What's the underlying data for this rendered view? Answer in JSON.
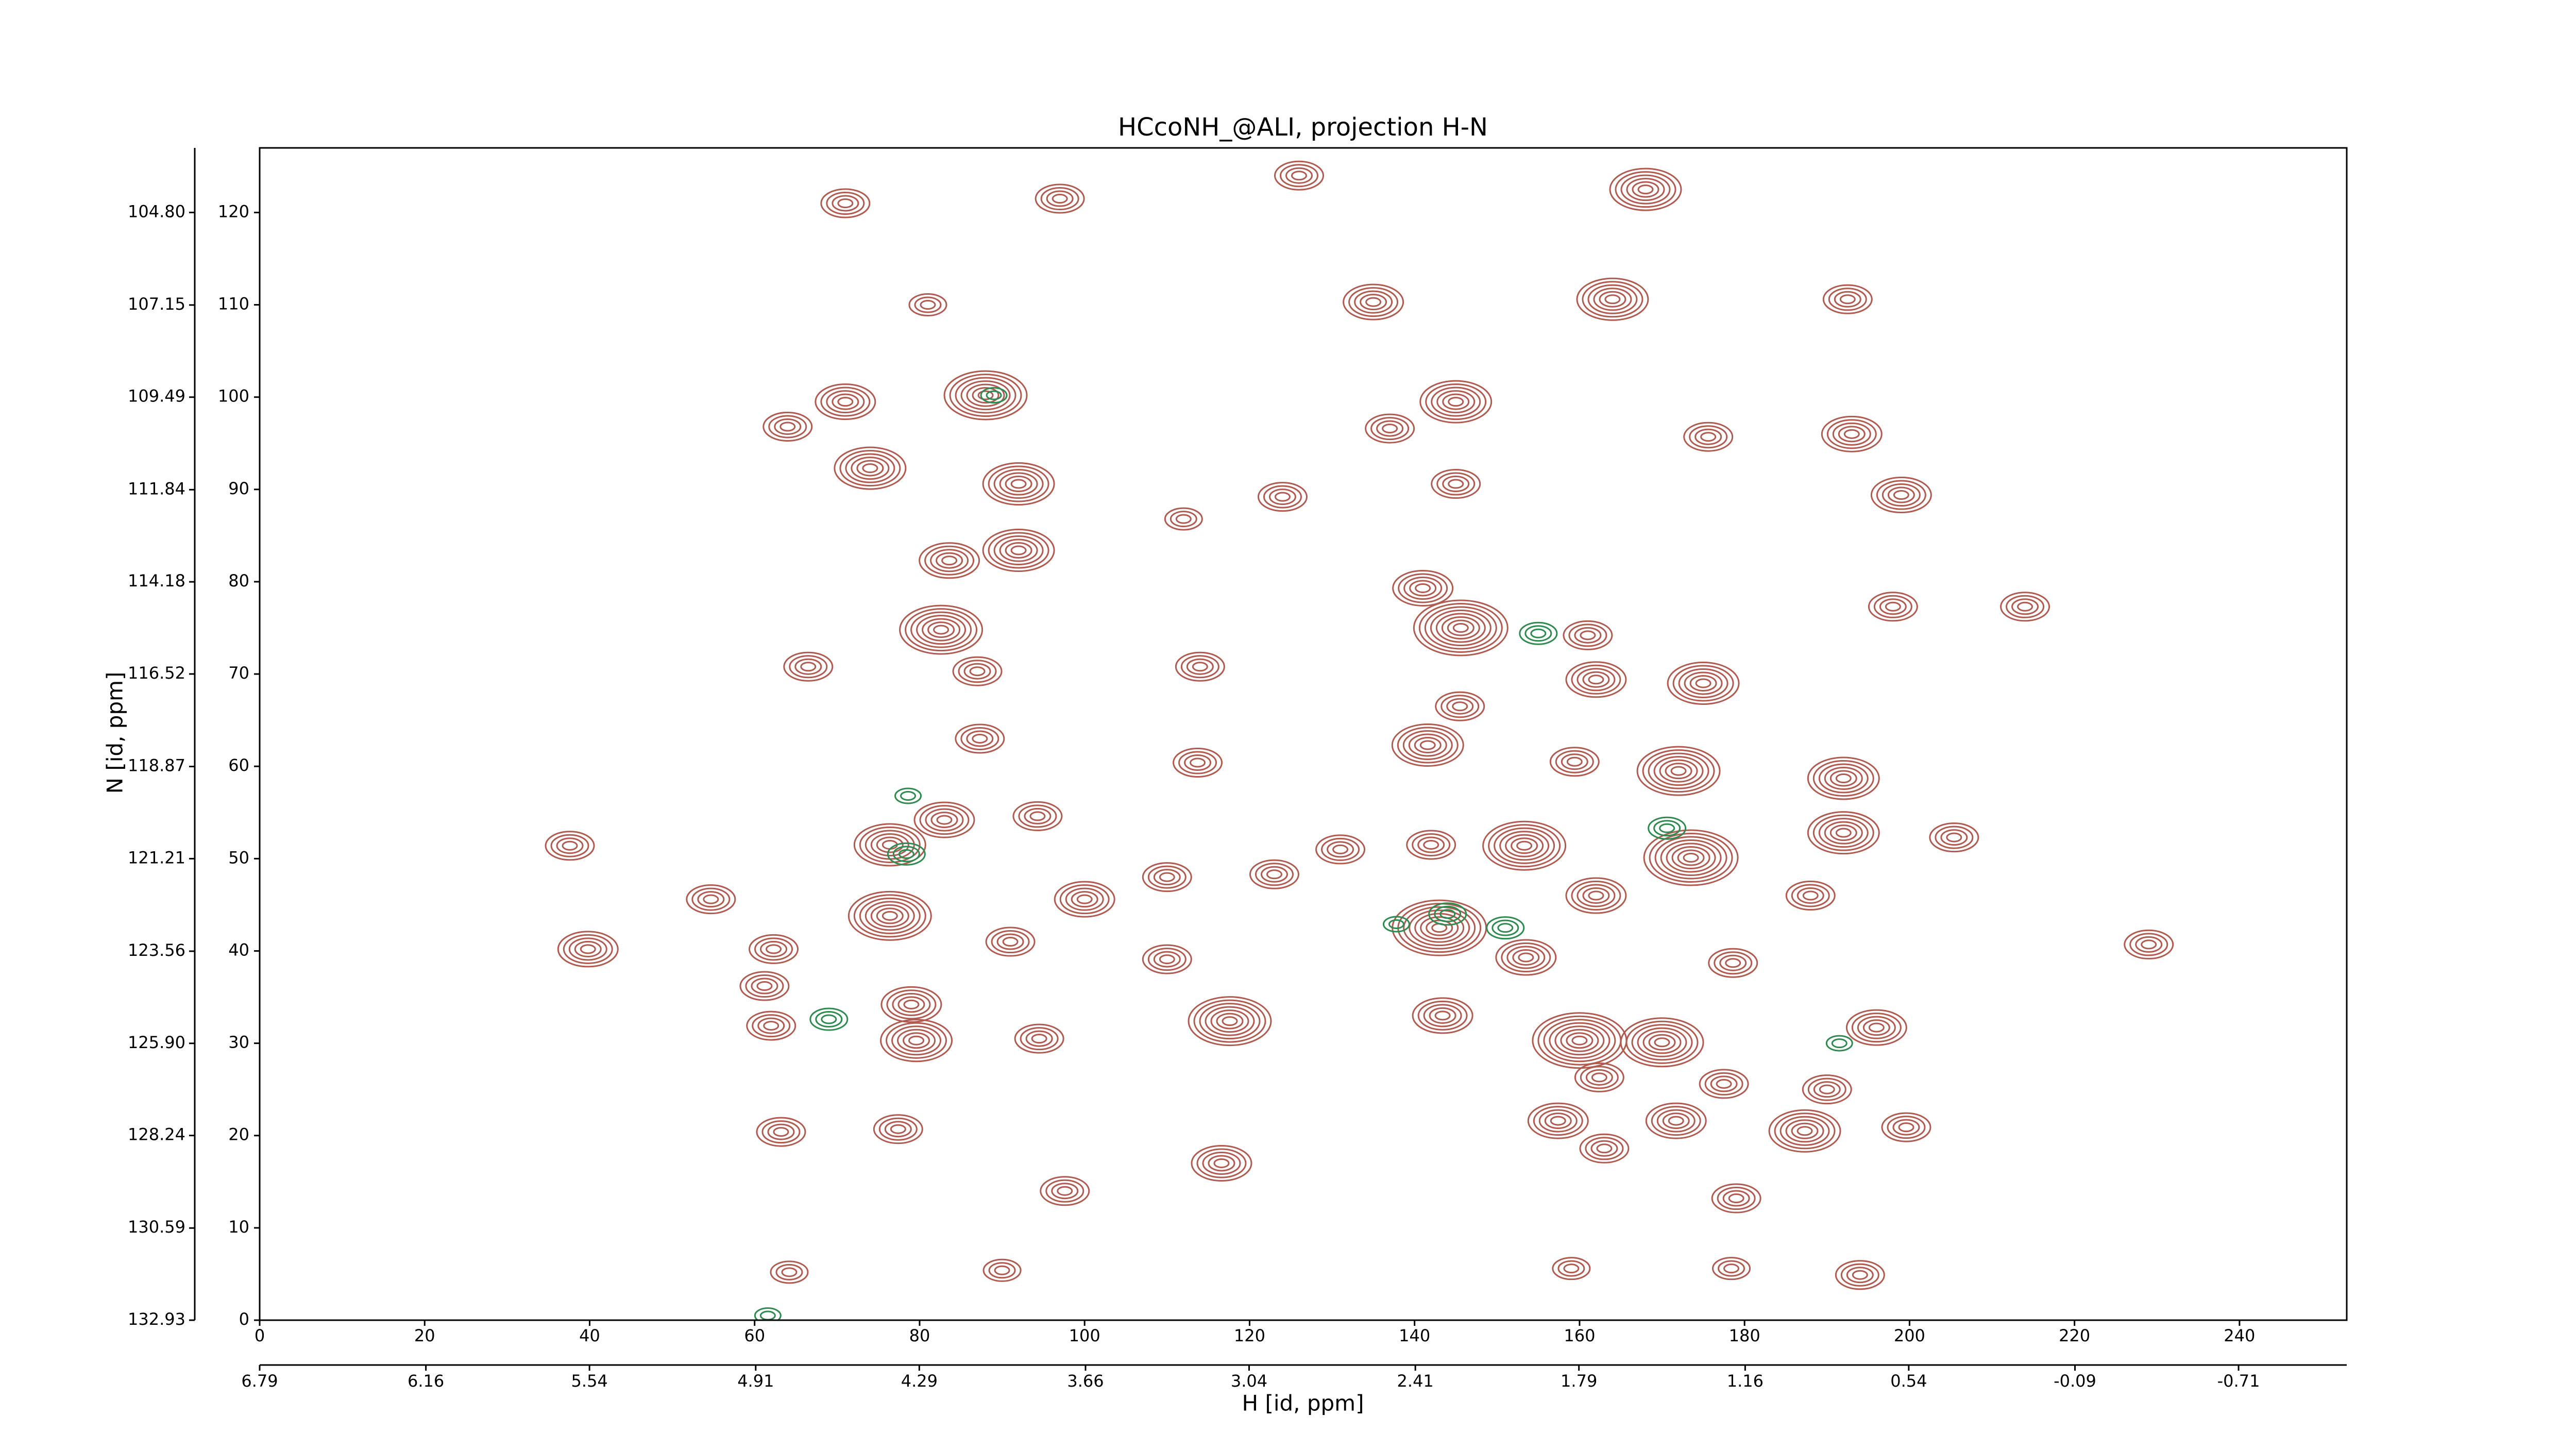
{
  "chart_data": {
    "type": "contour",
    "title": "HCcoNH_@ALI, projection H-N",
    "x_label": "H [id, ppm]",
    "y_label": "N [id, ppm]",
    "xlim": [
      0,
      253
    ],
    "ylim": [
      0,
      127
    ],
    "xticks": [
      0,
      20,
      40,
      60,
      80,
      100,
      120,
      140,
      160,
      180,
      200,
      220,
      240
    ],
    "yticks": [
      0,
      10,
      20,
      30,
      40,
      50,
      60,
      70,
      80,
      90,
      100,
      110,
      120
    ],
    "x2lim": [
      6.79,
      -1.12
    ],
    "x2ticks": [
      6.79,
      6.16,
      5.54,
      4.91,
      4.29,
      3.66,
      3.04,
      2.41,
      1.79,
      1.16,
      0.54,
      -0.09,
      -0.71
    ],
    "y2lim": [
      132.93,
      103.16
    ],
    "y2ticks": [
      132.93,
      130.59,
      128.24,
      {
        "value": 125.9,
        "label": "125.90"
      },
      123.56,
      121.21,
      118.87,
      116.52,
      114.18,
      111.84,
      109.49,
      107.15,
      {
        "value": 104.8,
        "label": "104.80"
      }
    ],
    "positive_peaks": {
      "color": "#b05a50",
      "x": [
        168,
        97,
        71,
        126,
        164,
        135,
        81,
        192.5,
        88,
        71,
        145,
        64,
        137,
        175.6,
        193,
        74,
        92,
        199,
        145,
        124,
        112,
        92,
        83.6,
        141,
        82.6,
        145.6,
        161,
        198,
        214,
        114,
        87,
        66.5,
        175,
        162,
        145.5,
        87.3,
        141.6,
        172,
        159.4,
        192,
        94.3,
        113.7,
        83,
        76.4,
        153.3,
        173.5,
        192,
        205.4,
        37.6,
        142,
        131,
        123,
        110,
        54.7,
        100,
        76.4,
        162,
        188,
        143,
        39.8,
        62.3,
        91,
        110,
        153.5,
        229,
        178.6,
        61.2,
        79,
        117.6,
        143.4,
        160,
        170,
        196,
        79.6,
        62,
        94.5,
        162.4,
        177.5,
        190,
        187.3,
        199.6,
        157.4,
        171.7,
        77.4,
        63.2,
        163,
        116.6,
        97.6,
        179,
        194,
        178.4,
        90,
        64.2,
        159
      ],
      "y": [
        122.5,
        121.5,
        121,
        124,
        110.6,
        110.3,
        110,
        110.6,
        100.2,
        99.5,
        99.5,
        96.8,
        96.6,
        95.7,
        96,
        92.3,
        90.6,
        89.4,
        90.6,
        89.2,
        86.8,
        83.4,
        82.3,
        79.3,
        74.8,
        75,
        74.2,
        77.3,
        77.3,
        70.8,
        70.3,
        70.8,
        69,
        69.4,
        66.5,
        63,
        62.3,
        59.5,
        60.5,
        58.7,
        54.6,
        60.4,
        54.2,
        51.5,
        51.4,
        50.1,
        52.8,
        52.3,
        51.4,
        51.5,
        51,
        48.3,
        48,
        45.6,
        45.6,
        43.8,
        46,
        46,
        42.5,
        40.2,
        40.2,
        41,
        39.1,
        39.3,
        40.7,
        38.7,
        36.2,
        34.2,
        32.4,
        33,
        30.3,
        30.1,
        31.7,
        30.3,
        31.9,
        30.5,
        26.3,
        25.6,
        25,
        20.5,
        20.9,
        21.6,
        21.6,
        20.7,
        20.4,
        18.6,
        17,
        14,
        13.2,
        4.9,
        5.6,
        5.4,
        5.2,
        5.6
      ],
      "contour_levels": [
        6,
        4,
        4,
        4,
        6,
        5,
        3,
        4,
        7,
        5,
        6,
        4,
        4,
        4,
        5,
        6,
        6,
        5,
        4,
        4,
        3,
        6,
        5,
        5,
        7,
        8,
        4,
        4,
        4,
        4,
        4,
        4,
        6,
        5,
        4,
        4,
        6,
        7,
        4,
        6,
        4,
        4,
        5,
        6,
        7,
        8,
        6,
        4,
        4,
        4,
        4,
        4,
        4,
        4,
        5,
        7,
        5,
        4,
        8,
        5,
        4,
        4,
        4,
        5,
        4,
        4,
        4,
        5,
        7,
        5,
        8,
        7,
        5,
        6,
        4,
        4,
        4,
        4,
        4,
        6,
        4,
        5,
        5,
        4,
        4,
        4,
        5,
        4,
        4,
        4,
        3,
        3,
        3,
        3
      ]
    },
    "negative_peaks": {
      "color": "#2e8b50",
      "x": [
        69,
        78.4,
        89,
        144,
        151,
        170.6,
        155,
        191.5,
        78.6,
        61.6,
        137.8
      ],
      "y": [
        32.6,
        50.5,
        100.2,
        44,
        42.5,
        53.3,
        74.4,
        30,
        56.8,
        0.5,
        42.9
      ],
      "contour_levels": [
        3,
        3,
        2,
        3,
        3,
        3,
        3,
        2,
        2,
        2,
        2
      ]
    }
  }
}
